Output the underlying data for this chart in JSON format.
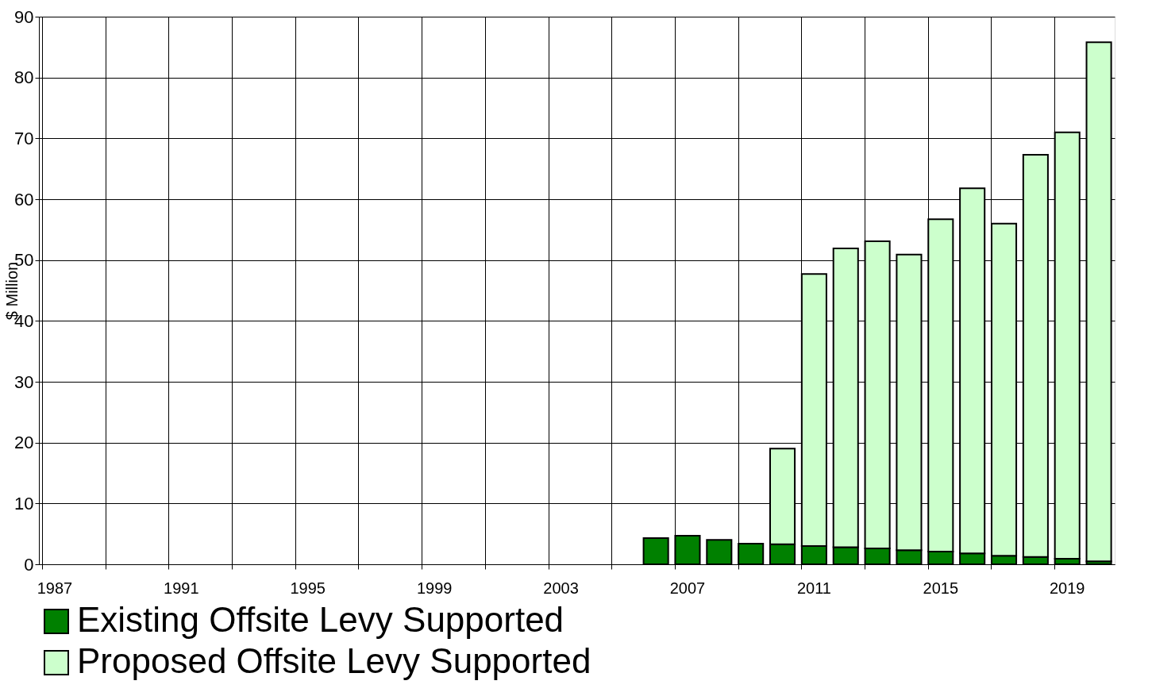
{
  "chart_data": {
    "type": "bar",
    "ylabel": "$ Million",
    "stacked": true,
    "categories": [
      "1987",
      null,
      null,
      null,
      "1991",
      null,
      null,
      null,
      "1995",
      null,
      null,
      null,
      "1999",
      null,
      null,
      null,
      "2003",
      null,
      null,
      null,
      "2007",
      null,
      null,
      null,
      "2011",
      null,
      null,
      null,
      "2015",
      null,
      null,
      null,
      "2019",
      null
    ],
    "series": [
      {
        "name": "Existing Offsite Levy Supported",
        "color": "#008000",
        "values": [
          null,
          null,
          null,
          null,
          null,
          null,
          null,
          null,
          null,
          null,
          null,
          null,
          null,
          null,
          null,
          null,
          null,
          null,
          null,
          4.3,
          4.7,
          4.0,
          3.4,
          3.3,
          3.0,
          2.8,
          2.6,
          2.3,
          2.1,
          1.8,
          1.4,
          1.2,
          0.9,
          0.5
        ]
      },
      {
        "name": "Proposed Offsite Levy Supported",
        "color": "#ccffcc",
        "values": [
          null,
          null,
          null,
          null,
          null,
          null,
          null,
          null,
          null,
          null,
          null,
          null,
          null,
          null,
          null,
          null,
          null,
          null,
          null,
          null,
          null,
          null,
          null,
          15.7,
          44.7,
          49.1,
          50.5,
          48.6,
          54.6,
          60.0,
          54.6,
          66.1,
          70.1,
          85.3
        ]
      }
    ],
    "ylim": [
      0,
      90
    ],
    "yticks": [
      0,
      10,
      20,
      30,
      40,
      50,
      60,
      70,
      80,
      90
    ],
    "grid": true,
    "legend": "bottom"
  }
}
